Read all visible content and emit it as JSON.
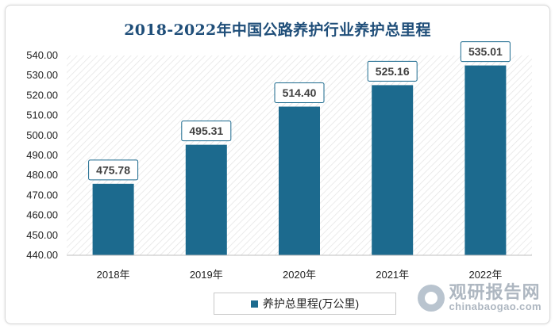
{
  "chart_data": {
    "type": "bar",
    "title": "2018-2022年中国公路养护行业养护总里程",
    "categories": [
      "2018年",
      "2019年",
      "2020年",
      "2021年",
      "2022年"
    ],
    "series": [
      {
        "name": "养护总里程(万公里)",
        "values": [
          475.78,
          495.31,
          514.4,
          525.16,
          535.01
        ]
      }
    ],
    "data_labels": [
      "475.78",
      "495.31",
      "514.40",
      "525.16",
      "535.01"
    ],
    "yticks": [
      "440.00",
      "450.00",
      "460.00",
      "470.00",
      "480.00",
      "490.00",
      "500.00",
      "510.00",
      "520.00",
      "530.00",
      "540.00"
    ],
    "ylim": [
      440,
      540
    ],
    "xlabel": "",
    "ylabel": "",
    "legend_position": "bottom",
    "bar_color": "#1c6a8e",
    "label_border_color": "#1c6a8e"
  },
  "watermark": {
    "cn": "观研报告网",
    "en": "chinabaogao.com"
  }
}
